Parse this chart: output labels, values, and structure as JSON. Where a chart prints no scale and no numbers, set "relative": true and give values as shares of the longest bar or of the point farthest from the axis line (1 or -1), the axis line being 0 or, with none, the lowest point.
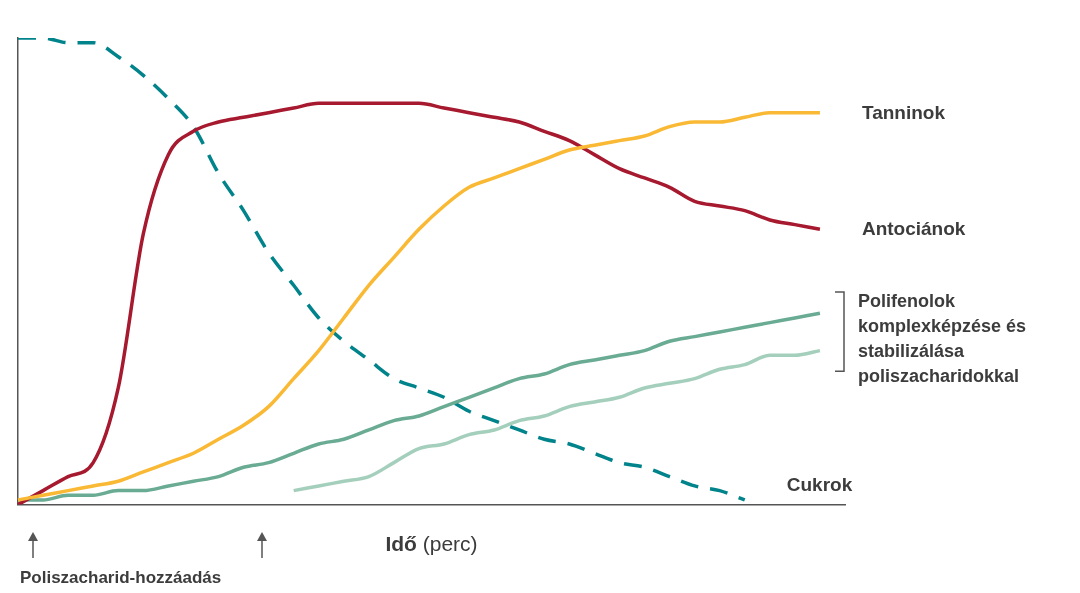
{
  "chart_data": {
    "type": "line",
    "relative": true,
    "legend": false,
    "grid": false,
    "marker": "none",
    "xlabel": "Idő (perc)",
    "categories": [
      null,
      null,
      null,
      null,
      null,
      null,
      null,
      null,
      null,
      null,
      null,
      null,
      null,
      null,
      null,
      null,
      null,
      null,
      null,
      null,
      null,
      null,
      null,
      null,
      null,
      null,
      null,
      null,
      null,
      null,
      null,
      null,
      null,
      null
    ],
    "series": [
      {
        "name": "Tanninok",
        "color": "#f9b934",
        "values": [
          0.01,
          0.02,
          0.03,
          0.04,
          0.05,
          0.07,
          0.09,
          0.11,
          0.14,
          0.17,
          0.21,
          0.27,
          0.33,
          0.4,
          0.47,
          0.53,
          0.59,
          0.64,
          0.68,
          0.7,
          0.72,
          0.74,
          0.76,
          0.77,
          0.78,
          0.79,
          0.81,
          0.82,
          0.82,
          0.83,
          0.84,
          0.84,
          0.84,
          null
        ]
      },
      {
        "name": "Antociánok",
        "color": "#a6192e",
        "values": [
          0.0,
          0.03,
          0.06,
          0.09,
          0.25,
          0.58,
          0.75,
          0.8,
          0.82,
          0.83,
          0.84,
          0.85,
          0.86,
          0.86,
          0.86,
          0.86,
          0.86,
          0.85,
          0.84,
          0.83,
          0.82,
          0.8,
          0.78,
          0.75,
          0.72,
          0.7,
          0.68,
          0.65,
          0.64,
          0.63,
          0.61,
          0.6,
          0.59,
          null
        ]
      },
      {
        "color": "#6aab94",
        "values": [
          0.01,
          0.01,
          0.02,
          0.02,
          0.03,
          0.03,
          0.04,
          0.05,
          0.06,
          0.08,
          0.09,
          0.11,
          0.13,
          0.14,
          0.16,
          0.18,
          0.19,
          0.21,
          0.23,
          0.25,
          0.27,
          0.28,
          0.3,
          0.31,
          0.32,
          0.33,
          0.35,
          0.36,
          0.37,
          0.38,
          0.39,
          0.4,
          0.41,
          null
        ]
      },
      {
        "color": "#a5cfbd",
        "values": [
          null,
          null,
          null,
          null,
          null,
          null,
          null,
          null,
          null,
          null,
          null,
          0.03,
          0.04,
          0.05,
          0.06,
          0.09,
          0.12,
          0.13,
          0.15,
          0.16,
          0.18,
          0.19,
          0.21,
          0.22,
          0.23,
          0.25,
          0.26,
          0.27,
          0.29,
          0.3,
          0.32,
          0.32,
          0.33,
          null
        ]
      },
      {
        "name": "Cukrok",
        "color": "#00838a",
        "line_style": "dashed",
        "values": [
          1,
          1,
          0.99,
          0.99,
          0.96,
          0.92,
          0.87,
          0.81,
          0.71,
          0.63,
          0.54,
          0.47,
          0.4,
          0.35,
          0.31,
          0.27,
          0.25,
          0.23,
          0.2,
          0.18,
          0.16,
          0.14,
          0.13,
          0.11,
          0.09,
          0.08,
          0.06,
          0.04,
          0.03,
          0.01,
          null,
          null,
          null,
          null
        ]
      }
    ],
    "annotations": [
      "Polifenolok komplexképzése és stabilizálása poliszacharidokkal",
      "Poliszacharid-hozzáadás"
    ]
  }
}
